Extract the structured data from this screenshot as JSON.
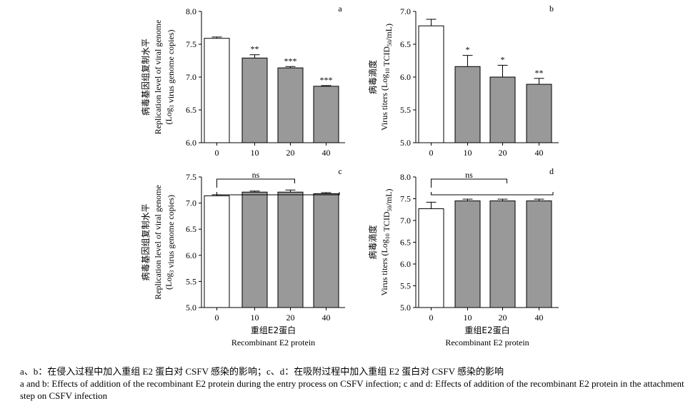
{
  "colors": {
    "control_bar": "#ffffff",
    "treatment_bar": "#999999",
    "axis": "#000000"
  },
  "xlabel_cn": "重组E2蛋白",
  "xlabel_en": "Recombinant E2 protein",
  "chart_data": [
    {
      "panel": "a",
      "type": "bar",
      "categories": [
        "0",
        "10",
        "20",
        "40"
      ],
      "values": [
        7.59,
        7.29,
        7.14,
        6.86
      ],
      "errors": [
        0.02,
        0.05,
        0.02,
        0.01
      ],
      "significance": [
        "",
        "**",
        "***",
        "***"
      ],
      "ylabel_cn": "病毒基因组复制水平",
      "ylabel_en": "Replication level of viral genome",
      "ylabel_unit_pre": "(Log",
      "ylabel_unit_sub": "3",
      "ylabel_unit_post": " virus genome copies)",
      "ylim": [
        6.0,
        8.0
      ],
      "yticks": [
        6.0,
        6.5,
        7.0,
        7.5,
        8.0
      ],
      "ytick_labels": [
        "6.0",
        "6.5",
        "7.0",
        "7.5",
        "8.0"
      ],
      "show_xlabel": false
    },
    {
      "panel": "b",
      "type": "bar",
      "categories": [
        "0",
        "10",
        "20",
        "40"
      ],
      "values": [
        6.78,
        6.16,
        6.0,
        5.89
      ],
      "errors": [
        0.1,
        0.17,
        0.18,
        0.09
      ],
      "significance": [
        "",
        "*",
        "*",
        "**"
      ],
      "ylabel_cn": "病毒滴度",
      "ylabel_en": "",
      "ylabel_unit_pre": "Virus titers (Log",
      "ylabel_unit_sub": "10",
      "ylabel_unit_mid": " TCID",
      "ylabel_unit_sub2": "50",
      "ylabel_unit_post": "/mL)",
      "ylim": [
        5.0,
        7.0
      ],
      "yticks": [
        5.0,
        5.5,
        6.0,
        6.5,
        7.0
      ],
      "ytick_labels": [
        "5.0",
        "5.5",
        "6.0",
        "6.5",
        "7.0"
      ],
      "show_xlabel": false
    },
    {
      "panel": "c",
      "type": "bar",
      "categories": [
        "0",
        "10",
        "20",
        "40"
      ],
      "values": [
        7.14,
        7.21,
        7.21,
        7.18
      ],
      "errors": [
        0.02,
        0.02,
        0.04,
        0.02
      ],
      "significance": [
        "",
        "",
        "",
        ""
      ],
      "bracket_label": "ns",
      "ylabel_cn": "病毒基因组复制水平",
      "ylabel_en": "Replication level of viral genome",
      "ylabel_unit_pre": "(Log",
      "ylabel_unit_sub": "3",
      "ylabel_unit_post": " virus genome copies)",
      "ylim": [
        5.0,
        7.5
      ],
      "yticks": [
        5.0,
        5.5,
        6.0,
        6.5,
        7.0,
        7.5
      ],
      "ytick_labels": [
        "5.0",
        "5.5",
        "6.0",
        "6.5",
        "7.0",
        "7.5"
      ],
      "show_xlabel": true
    },
    {
      "panel": "d",
      "type": "bar",
      "categories": [
        "0",
        "10",
        "20",
        "40"
      ],
      "values": [
        7.27,
        7.45,
        7.45,
        7.45
      ],
      "errors": [
        0.15,
        0.04,
        0.04,
        0.04
      ],
      "significance": [
        "",
        "",
        "",
        ""
      ],
      "bracket_label": "ns",
      "ylabel_cn": "病毒滴度",
      "ylabel_en": "",
      "ylabel_unit_pre": "Virus titers (Log",
      "ylabel_unit_sub": "10",
      "ylabel_unit_mid": " TCID",
      "ylabel_unit_sub2": "50",
      "ylabel_unit_post": "/mL)",
      "ylim": [
        5.0,
        8.0
      ],
      "yticks": [
        5.0,
        5.5,
        6.0,
        6.5,
        7.0,
        7.5,
        8.0
      ],
      "ytick_labels": [
        "5.0",
        "5.5",
        "6.0",
        "6.5",
        "7.0",
        "7.5",
        "8.0"
      ],
      "show_xlabel": true
    }
  ],
  "caption": {
    "cn": "a、b：在侵入过程中加入重组 E2 蛋白对 CSFV 感染的影响；c、d：在吸附过程中加入重组 E2 蛋白对 CSFV 感染的影响",
    "en": "a and b: Effects of addition of the recombinant E2 protein during the entry process on CSFV infection; c and d: Effects of addition of the recombinant E2 protein in the attachment step on CSFV infection"
  }
}
